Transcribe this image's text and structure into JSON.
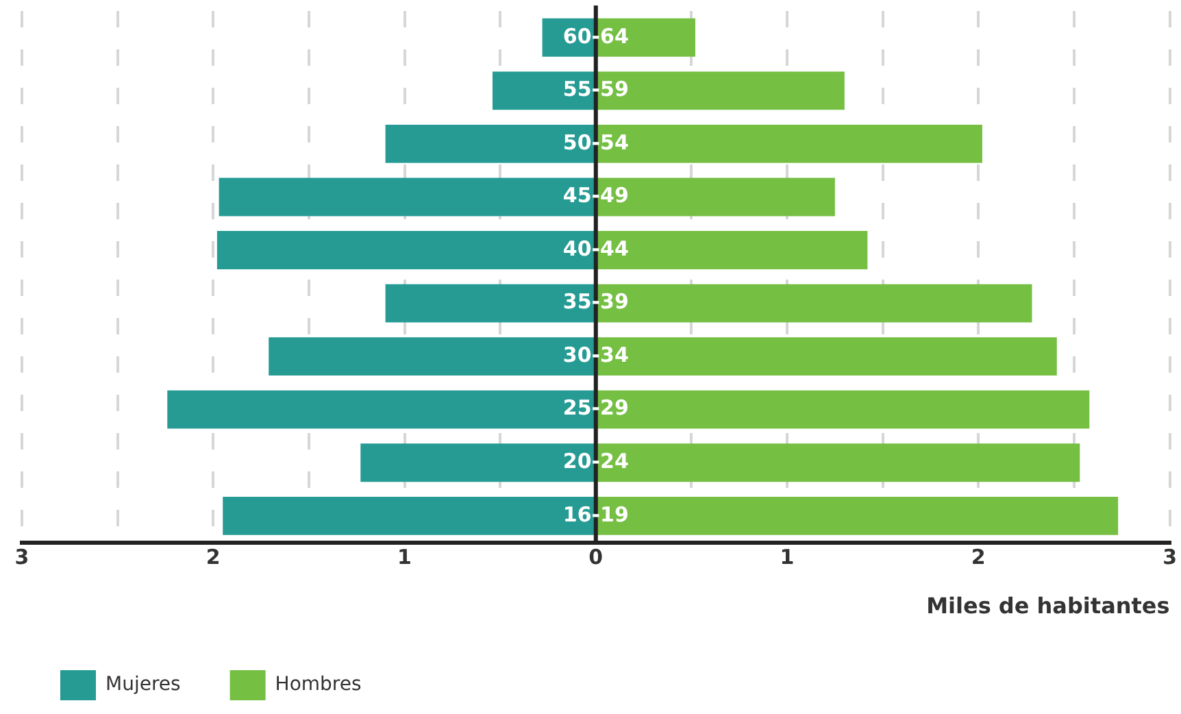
{
  "chart_data": {
    "type": "bar",
    "orientation": "horizontal",
    "stacked": true,
    "xlabel": "Miles de habitantes",
    "categories": [
      "60-64",
      "55-59",
      "50-54",
      "45-49",
      "40-44",
      "35-39",
      "30-34",
      "25-29",
      "20-24",
      "16-19"
    ],
    "series": [
      {
        "name": "Mujeres",
        "color": "#269b94",
        "values": [
          -0.28,
          -0.54,
          -1.1,
          -1.97,
          -1.98,
          -1.1,
          -1.71,
          -2.24,
          -1.23,
          -1.95
        ]
      },
      {
        "name": "Hombres",
        "color": "#75bf43",
        "values": [
          0.52,
          1.3,
          2.02,
          1.25,
          1.42,
          2.28,
          2.41,
          2.58,
          2.53,
          2.73
        ]
      }
    ],
    "xlim": [
      -3,
      3
    ],
    "xticks": [
      {
        "value": -3,
        "label": "3"
      },
      {
        "value": -2.5,
        "label": null
      },
      {
        "value": -2,
        "label": "2"
      },
      {
        "value": -1.5,
        "label": null
      },
      {
        "value": -1,
        "label": "1"
      },
      {
        "value": -0.5,
        "label": null
      },
      0,
      {
        "value": 0.5,
        "label": null
      },
      1,
      {
        "value": 1.5,
        "label": null
      },
      2,
      {
        "value": 2.5,
        "label": null
      },
      3
    ],
    "grid": "x",
    "legend": "bottom left"
  }
}
